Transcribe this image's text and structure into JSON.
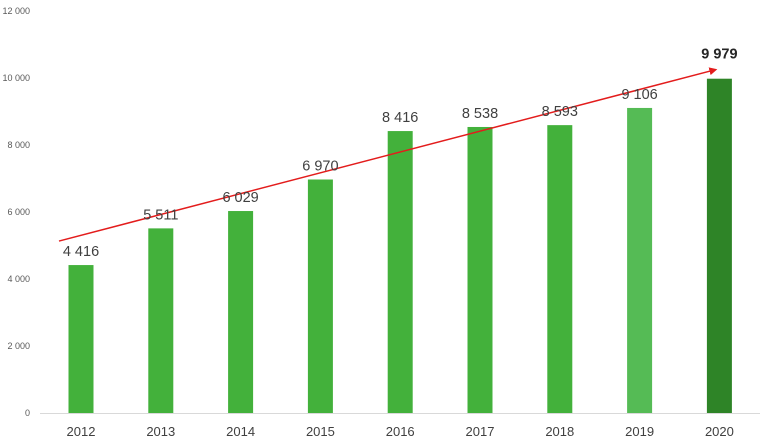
{
  "chart_data": {
    "type": "bar",
    "title": "",
    "xlabel": "",
    "ylabel": "",
    "categories": [
      "2012",
      "2013",
      "2014",
      "2015",
      "2016",
      "2017",
      "2018",
      "2019",
      "2020"
    ],
    "values": [
      4416,
      5511,
      6029,
      6970,
      8416,
      8538,
      8593,
      9106,
      9979
    ],
    "data_labels": [
      "4 416",
      "5 511",
      "6 029",
      "6 970",
      "8 416",
      "8 538",
      "8 593",
      "9 106",
      "9 979"
    ],
    "ylim": [
      0,
      12000
    ],
    "yticks": [
      0,
      2000,
      4000,
      6000,
      8000,
      10000,
      12000
    ],
    "ytick_labels": [
      "0",
      "2 000",
      "4 000",
      "6 000",
      "8 000",
      "10 000",
      "12 000"
    ],
    "grid": false,
    "legend": "none",
    "bar_colors": [
      "#43b13b",
      "#43b13b",
      "#43b13b",
      "#43b13b",
      "#43b13b",
      "#43b13b",
      "#43b13b",
      "#55bb55",
      "#2e8427"
    ],
    "highlight_label_index": 8,
    "trend_arrow": {
      "from_category": "2012",
      "to_category": "2020",
      "color": "#e31c1c"
    }
  }
}
